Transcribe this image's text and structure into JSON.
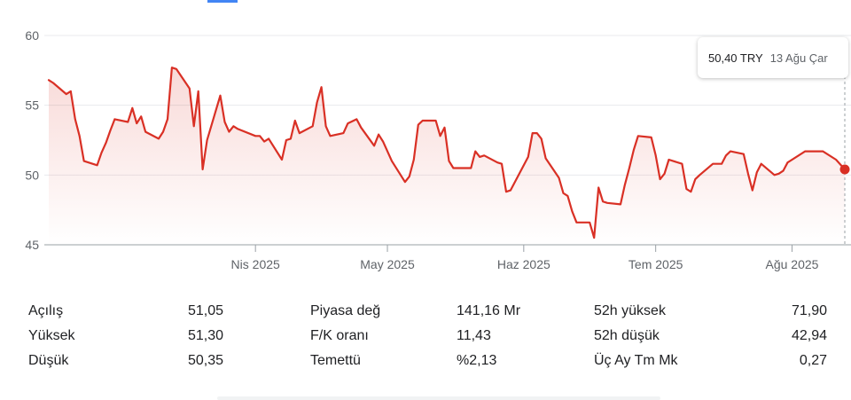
{
  "chart_data": {
    "type": "area",
    "ylim": [
      45,
      60
    ],
    "y_ticks": [
      "60",
      "55",
      "50",
      "45"
    ],
    "y_tick_values": [
      60,
      55,
      50,
      45
    ],
    "x_ticks": [
      "Nis 2025",
      "May 2025",
      "Haz 2025",
      "Tem 2025",
      "Ağu 2025"
    ],
    "x_tick_dates": [
      "2025-04-01",
      "2025-05-01",
      "2025-06-01",
      "2025-07-01",
      "2025-08-01"
    ],
    "line_color": "#d93025",
    "grid": true,
    "series": [
      {
        "points": [
          [
            "2025-02-13",
            56.8
          ],
          [
            "2025-02-14",
            56.6
          ],
          [
            "2025-02-17",
            55.8
          ],
          [
            "2025-02-18",
            56.0
          ],
          [
            "2025-02-19",
            54.0
          ],
          [
            "2025-02-20",
            52.8
          ],
          [
            "2025-02-21",
            51.0
          ],
          [
            "2025-02-24",
            50.7
          ],
          [
            "2025-02-25",
            51.6
          ],
          [
            "2025-02-26",
            52.3
          ],
          [
            "2025-02-27",
            53.2
          ],
          [
            "2025-02-28",
            54.0
          ],
          [
            "2025-03-03",
            53.8
          ],
          [
            "2025-03-04",
            54.8
          ],
          [
            "2025-03-05",
            53.7
          ],
          [
            "2025-03-06",
            54.2
          ],
          [
            "2025-03-07",
            53.1
          ],
          [
            "2025-03-10",
            52.6
          ],
          [
            "2025-03-11",
            53.1
          ],
          [
            "2025-03-12",
            54.0
          ],
          [
            "2025-03-13",
            57.7
          ],
          [
            "2025-03-14",
            57.6
          ],
          [
            "2025-03-17",
            56.2
          ],
          [
            "2025-03-18",
            53.5
          ],
          [
            "2025-03-19",
            56.0
          ],
          [
            "2025-03-20",
            50.4
          ],
          [
            "2025-03-21",
            52.5
          ],
          [
            "2025-03-24",
            55.7
          ],
          [
            "2025-03-25",
            53.8
          ],
          [
            "2025-03-26",
            53.1
          ],
          [
            "2025-03-27",
            53.5
          ],
          [
            "2025-03-28",
            53.3
          ],
          [
            "2025-04-01",
            52.8
          ],
          [
            "2025-04-02",
            52.8
          ],
          [
            "2025-04-03",
            52.4
          ],
          [
            "2025-04-04",
            52.6
          ],
          [
            "2025-04-07",
            51.1
          ],
          [
            "2025-04-08",
            52.5
          ],
          [
            "2025-04-09",
            52.6
          ],
          [
            "2025-04-10",
            53.9
          ],
          [
            "2025-04-11",
            53.0
          ],
          [
            "2025-04-14",
            53.5
          ],
          [
            "2025-04-15",
            55.2
          ],
          [
            "2025-04-16",
            56.3
          ],
          [
            "2025-04-17",
            53.5
          ],
          [
            "2025-04-18",
            52.8
          ],
          [
            "2025-04-21",
            53.0
          ],
          [
            "2025-04-22",
            53.7
          ],
          [
            "2025-04-24",
            54.0
          ],
          [
            "2025-04-25",
            53.4
          ],
          [
            "2025-04-28",
            52.1
          ],
          [
            "2025-04-29",
            52.9
          ],
          [
            "2025-04-30",
            52.4
          ],
          [
            "2025-05-02",
            51.0
          ],
          [
            "2025-05-05",
            49.5
          ],
          [
            "2025-05-06",
            49.9
          ],
          [
            "2025-05-07",
            51.1
          ],
          [
            "2025-05-08",
            53.6
          ],
          [
            "2025-05-09",
            53.9
          ],
          [
            "2025-05-12",
            53.9
          ],
          [
            "2025-05-13",
            52.8
          ],
          [
            "2025-05-14",
            53.4
          ],
          [
            "2025-05-15",
            51.0
          ],
          [
            "2025-05-16",
            50.5
          ],
          [
            "2025-05-20",
            50.5
          ],
          [
            "2025-05-21",
            51.7
          ],
          [
            "2025-05-22",
            51.3
          ],
          [
            "2025-05-23",
            51.4
          ],
          [
            "2025-05-26",
            50.9
          ],
          [
            "2025-05-27",
            50.8
          ],
          [
            "2025-05-28",
            48.8
          ],
          [
            "2025-05-29",
            48.9
          ],
          [
            "2025-06-02",
            51.3
          ],
          [
            "2025-06-03",
            53.0
          ],
          [
            "2025-06-04",
            53.0
          ],
          [
            "2025-06-05",
            52.6
          ],
          [
            "2025-06-06",
            51.2
          ],
          [
            "2025-06-09",
            49.8
          ],
          [
            "2025-06-10",
            48.7
          ],
          [
            "2025-06-11",
            48.5
          ],
          [
            "2025-06-12",
            47.4
          ],
          [
            "2025-06-13",
            46.6
          ],
          [
            "2025-06-16",
            46.6
          ],
          [
            "2025-06-17",
            45.5
          ],
          [
            "2025-06-18",
            49.1
          ],
          [
            "2025-06-19",
            48.1
          ],
          [
            "2025-06-20",
            48.0
          ],
          [
            "2025-06-23",
            47.9
          ],
          [
            "2025-06-24",
            49.3
          ],
          [
            "2025-06-25",
            50.5
          ],
          [
            "2025-06-26",
            51.8
          ],
          [
            "2025-06-27",
            52.8
          ],
          [
            "2025-06-30",
            52.7
          ],
          [
            "2025-07-01",
            51.4
          ],
          [
            "2025-07-02",
            49.7
          ],
          [
            "2025-07-03",
            50.1
          ],
          [
            "2025-07-04",
            51.1
          ],
          [
            "2025-07-07",
            50.8
          ],
          [
            "2025-07-08",
            49.0
          ],
          [
            "2025-07-09",
            48.8
          ],
          [
            "2025-07-10",
            49.7
          ],
          [
            "2025-07-11",
            50.0
          ],
          [
            "2025-07-14",
            50.8
          ],
          [
            "2025-07-16",
            50.8
          ],
          [
            "2025-07-17",
            51.4
          ],
          [
            "2025-07-18",
            51.7
          ],
          [
            "2025-07-21",
            51.5
          ],
          [
            "2025-07-22",
            50.1
          ],
          [
            "2025-07-23",
            48.9
          ],
          [
            "2025-07-24",
            50.2
          ],
          [
            "2025-07-25",
            50.8
          ],
          [
            "2025-07-28",
            50.0
          ],
          [
            "2025-07-29",
            50.1
          ],
          [
            "2025-07-30",
            50.3
          ],
          [
            "2025-07-31",
            50.9
          ],
          [
            "2025-08-04",
            51.7
          ],
          [
            "2025-08-06",
            51.7
          ],
          [
            "2025-08-08",
            51.7
          ],
          [
            "2025-08-11",
            51.1
          ],
          [
            "2025-08-13",
            50.4
          ]
        ]
      }
    ]
  },
  "tooltip": {
    "price": "50,40 TRY",
    "date": "13 Ağu Çar"
  },
  "stats": [
    {
      "label": "Açılış",
      "value": "51,05"
    },
    {
      "label": "Yüksek",
      "value": "51,30"
    },
    {
      "label": "Düşük",
      "value": "50,35"
    },
    {
      "label": "Piyasa değ",
      "value": "141,16 Mr"
    },
    {
      "label": "F/K oranı",
      "value": "11,43"
    },
    {
      "label": "Temettü",
      "value": "%2,13"
    },
    {
      "label": "52h yüksek",
      "value": "71,90"
    },
    {
      "label": "52h düşük",
      "value": "42,94"
    },
    {
      "label": "Üç Ay Tm Mk",
      "value": "0,27"
    }
  ]
}
